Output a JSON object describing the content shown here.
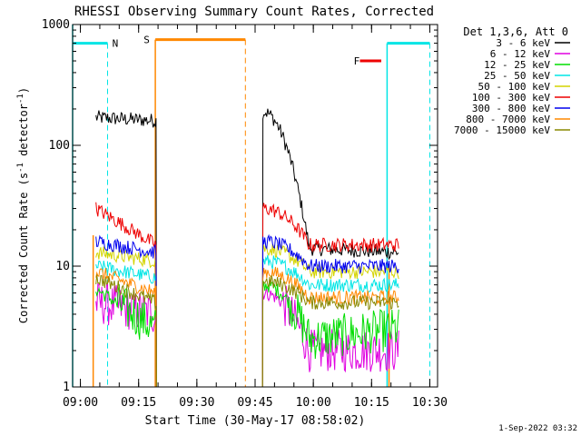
{
  "chart_data": {
    "type": "line",
    "title": "RHESSI Observing Summary Count Rates, Corrected",
    "xlabel": "Start Time (30-May-17 08:58:02)",
    "ylabel_main": "Corrected Count Rate (s",
    "ylabel_sup1": "-1",
    "ylabel_mid": " detector",
    "ylabel_sup2": "-1",
    "ylabel_end": ")",
    "y_scale": "log",
    "ylim": [
      1,
      1000
    ],
    "xlim_min": [
      0,
      94
    ],
    "y_ticks": [
      {
        "v": 1,
        "label": "1"
      },
      {
        "v": 10,
        "label": "10"
      },
      {
        "v": 100,
        "label": "100"
      },
      {
        "v": 1000,
        "label": "1000"
      }
    ],
    "x_ticks": [
      {
        "m": 2,
        "label": "09:00"
      },
      {
        "m": 17,
        "label": "09:15"
      },
      {
        "m": 32,
        "label": "09:30"
      },
      {
        "m": 47,
        "label": "09:45"
      },
      {
        "m": 62,
        "label": "10:00"
      },
      {
        "m": 77,
        "label": "10:15"
      },
      {
        "m": 92,
        "label": "10:30"
      }
    ],
    "legend": {
      "header": "Det 1,3,6, Att 0",
      "placement": "right"
    },
    "footer_date": "1-Sep-2022 03:32",
    "series": [
      {
        "name": "3 - 6 keV",
        "color": "#000000",
        "p1": [
          170,
          160
        ],
        "p2": [
          190,
          14,
          13
        ]
      },
      {
        "name": "6 - 12 keV",
        "color": "#e000e0",
        "p1": [
          5,
          4
        ],
        "p2": [
          6,
          2,
          2
        ]
      },
      {
        "name": "12 - 25 keV",
        "color": "#00dd00",
        "p1": [
          6.5,
          3
        ],
        "p2": [
          7,
          2.5,
          3
        ]
      },
      {
        "name": "25 - 50 keV",
        "color": "#00e5e5",
        "p1": [
          10,
          8
        ],
        "p2": [
          11,
          7,
          7
        ]
      },
      {
        "name": "50 - 100 keV",
        "color": "#d4d400",
        "p1": [
          13,
          11
        ],
        "p2": [
          14,
          9,
          9
        ]
      },
      {
        "name": "100 - 300 keV",
        "color": "#ee0000",
        "p1": [
          30,
          15
        ],
        "p2": [
          30,
          15,
          15
        ]
      },
      {
        "name": "300 - 800 keV",
        "color": "#0000ee",
        "p1": [
          16,
          13
        ],
        "p2": [
          16,
          10,
          10
        ]
      },
      {
        "name": "800 - 7000 keV",
        "color": "#ff8800",
        "p1": [
          9,
          6
        ],
        "p2": [
          9,
          5.5,
          5.5
        ]
      },
      {
        "name": "7000 - 15000 keV",
        "color": "#888800",
        "p1": [
          8,
          5
        ],
        "p2": [
          7.5,
          5,
          5
        ]
      }
    ],
    "intervals": {
      "N": {
        "label": "N",
        "color": "#00e5e5",
        "top_y": 700
      },
      "S": {
        "label": "S",
        "color": "#ff8800",
        "top_y": 750
      },
      "F": {
        "label": "F",
        "color": "#ee0000",
        "top_y": 500
      }
    },
    "data_windows": [
      {
        "start": 6,
        "end": 21.5
      },
      {
        "start": 49,
        "end": 84
      }
    ]
  }
}
